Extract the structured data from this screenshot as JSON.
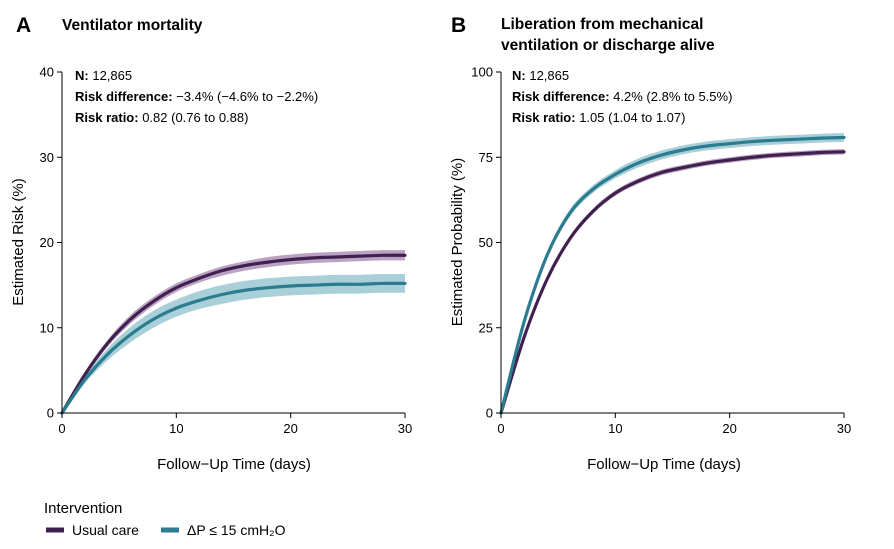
{
  "colors": {
    "usual_care": "#40204f",
    "intervention": "#2a7c8e",
    "usual_care_band": "#a98bb4",
    "intervention_band": "#93c3cf"
  },
  "legend": {
    "title": "Intervention",
    "items": [
      {
        "label": "Usual care",
        "color": "#40204f"
      },
      {
        "label": "ΔP ≤ 15 cmH₂O",
        "color": "#2a7c8e"
      }
    ]
  },
  "chart_data": [
    {
      "type": "line",
      "panel_letter": "A",
      "title": "Ventilator mortality",
      "xlabel": "Follow−Up Time (days)",
      "ylabel": "Estimated Risk (%)",
      "xlim": [
        0,
        30
      ],
      "ylim": [
        0,
        40
      ],
      "xticks": [
        0,
        10,
        20,
        30
      ],
      "yticks": [
        0,
        10,
        20,
        30,
        40
      ],
      "grid": false,
      "annotation": [
        {
          "label": "N:",
          "value": "12,865"
        },
        {
          "label": "Risk difference:",
          "value": "−3.4% (−4.6% to −2.2%)"
        },
        {
          "label": "Risk ratio:",
          "value": "0.82 (0.76 to 0.88)"
        }
      ],
      "x": [
        0,
        2,
        4,
        6,
        8,
        10,
        12,
        14,
        16,
        18,
        20,
        22,
        24,
        26,
        28,
        30
      ],
      "series": [
        {
          "name": "Usual care",
          "color": "#40204f",
          "band_color": "#a98bb4",
          "values": [
            0,
            4.5,
            8.2,
            11.0,
            13.1,
            14.7,
            15.8,
            16.7,
            17.3,
            17.7,
            18.0,
            18.2,
            18.3,
            18.4,
            18.5,
            18.5
          ],
          "lower": [
            0,
            4.2,
            7.8,
            10.5,
            12.6,
            14.2,
            15.3,
            16.1,
            16.7,
            17.1,
            17.4,
            17.6,
            17.7,
            17.8,
            17.9,
            17.9
          ],
          "upper": [
            0,
            4.8,
            8.6,
            11.5,
            13.6,
            15.2,
            16.3,
            17.2,
            17.8,
            18.3,
            18.6,
            18.8,
            18.9,
            19.0,
            19.1,
            19.1
          ]
        },
        {
          "name": "ΔP ≤ 15 cmH₂O",
          "color": "#2a7c8e",
          "band_color": "#93c3cf",
          "values": [
            0,
            3.9,
            6.9,
            9.2,
            11.0,
            12.3,
            13.2,
            13.9,
            14.4,
            14.7,
            14.9,
            15.0,
            15.1,
            15.1,
            15.2,
            15.2
          ],
          "lower": [
            0,
            3.5,
            6.2,
            8.3,
            10.0,
            11.3,
            12.2,
            12.8,
            13.3,
            13.6,
            13.8,
            13.9,
            14.0,
            14.0,
            14.1,
            14.1
          ],
          "upper": [
            0,
            4.3,
            7.6,
            10.1,
            12.0,
            13.3,
            14.3,
            15.0,
            15.5,
            15.8,
            16.0,
            16.1,
            16.2,
            16.2,
            16.3,
            16.3
          ]
        }
      ]
    },
    {
      "type": "line",
      "panel_letter": "B",
      "title": "Liberation from mechanical ventilation or discharge alive",
      "title_lines": [
        "Liberation from mechanical",
        "ventilation or discharge alive"
      ],
      "xlabel": "Follow−Up Time (days)",
      "ylabel": "Estimated Probability (%)",
      "xlim": [
        0,
        30
      ],
      "ylim": [
        0,
        100
      ],
      "xticks": [
        0,
        10,
        20,
        30
      ],
      "yticks": [
        0,
        25,
        50,
        75,
        100
      ],
      "grid": false,
      "annotation": [
        {
          "label": "N:",
          "value": "12,865"
        },
        {
          "label": "Risk difference:",
          "value": "4.2% (2.8% to 5.5%)"
        },
        {
          "label": "Risk ratio:",
          "value": "1.05 (1.04 to 1.07)"
        }
      ],
      "x": [
        0,
        2,
        4,
        6,
        8,
        10,
        12,
        14,
        16,
        18,
        20,
        22,
        24,
        26,
        28,
        30
      ],
      "series": [
        {
          "name": "Usual care",
          "color": "#40204f",
          "band_color": "#a98bb4",
          "values": [
            0,
            22,
            39,
            51,
            59,
            64.5,
            68,
            70.5,
            72,
            73.3,
            74.2,
            75,
            75.6,
            76,
            76.4,
            76.6
          ],
          "lower": [
            0,
            21.3,
            38.2,
            50.2,
            58.2,
            63.7,
            67.2,
            69.7,
            71.2,
            72.5,
            73.4,
            74.2,
            74.8,
            75.2,
            75.6,
            75.8
          ],
          "upper": [
            0,
            22.7,
            39.8,
            51.8,
            59.8,
            65.3,
            68.8,
            71.3,
            72.8,
            74.1,
            75.0,
            75.8,
            76.4,
            76.8,
            77.2,
            77.4
          ]
        },
        {
          "name": "ΔP ≤ 15 cmH₂O",
          "color": "#2a7c8e",
          "band_color": "#93c3cf",
          "values": [
            0,
            26.5,
            46,
            58.5,
            65.5,
            70,
            73.3,
            75.6,
            77.2,
            78.3,
            79,
            79.6,
            80,
            80.3,
            80.6,
            80.8
          ],
          "lower": [
            0,
            25.6,
            45,
            57.4,
            64.4,
            68.8,
            72.0,
            74.3,
            75.9,
            77.0,
            77.7,
            78.3,
            78.7,
            79.0,
            79.3,
            79.5
          ],
          "upper": [
            0,
            27.4,
            47,
            59.6,
            66.6,
            71.2,
            74.6,
            76.9,
            78.5,
            79.6,
            80.3,
            80.9,
            81.3,
            81.6,
            81.9,
            82.1
          ]
        }
      ]
    }
  ]
}
